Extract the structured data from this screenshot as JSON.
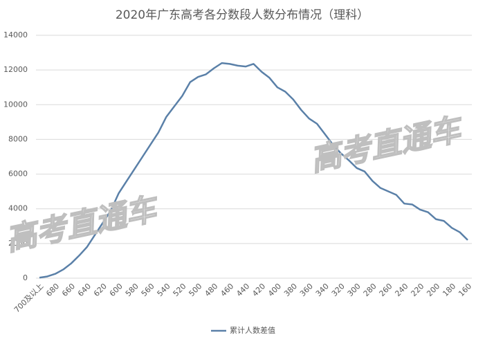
{
  "chart_data": {
    "type": "line",
    "title": "2020年广东高考各分数段人数分布情况（理科）",
    "categories": [
      "700及以上",
      null,
      "680",
      null,
      "660",
      null,
      "640",
      null,
      "620",
      null,
      "600",
      null,
      "580",
      null,
      "560",
      null,
      "540",
      null,
      "520",
      null,
      "500",
      null,
      "480",
      null,
      "460",
      null,
      "440",
      null,
      "420",
      null,
      "400",
      null,
      "380",
      null,
      "360",
      null,
      "340",
      null,
      "320",
      null,
      "300",
      null,
      "280",
      null,
      "260",
      null,
      "240",
      null,
      "220",
      null,
      "200",
      null,
      "180",
      null,
      "160"
    ],
    "series": [
      {
        "name": "累计人数差值",
        "color": "#5a80a8",
        "values": [
          30,
          100,
          250,
          500,
          850,
          1300,
          1800,
          2500,
          3200,
          3900,
          4900,
          5600,
          6300,
          7000,
          7700,
          8400,
          9300,
          9900,
          10500,
          11300,
          11600,
          11750,
          12100,
          12400,
          12350,
          12250,
          12200,
          12350,
          11900,
          11550,
          11000,
          10750,
          10300,
          9700,
          9200,
          8900,
          8300,
          7700,
          7200,
          6800,
          6350,
          6150,
          5600,
          5200,
          5000,
          4800,
          4300,
          4250,
          3950,
          3800,
          3400,
          3300,
          2900,
          2650,
          2200
        ]
      }
    ],
    "ylim": [
      0,
      14000
    ],
    "yticks": [
      0,
      2000,
      4000,
      6000,
      8000,
      10000,
      12000,
      14000
    ],
    "grid": true,
    "legend": "bottom",
    "watermark": "高考直通车"
  }
}
